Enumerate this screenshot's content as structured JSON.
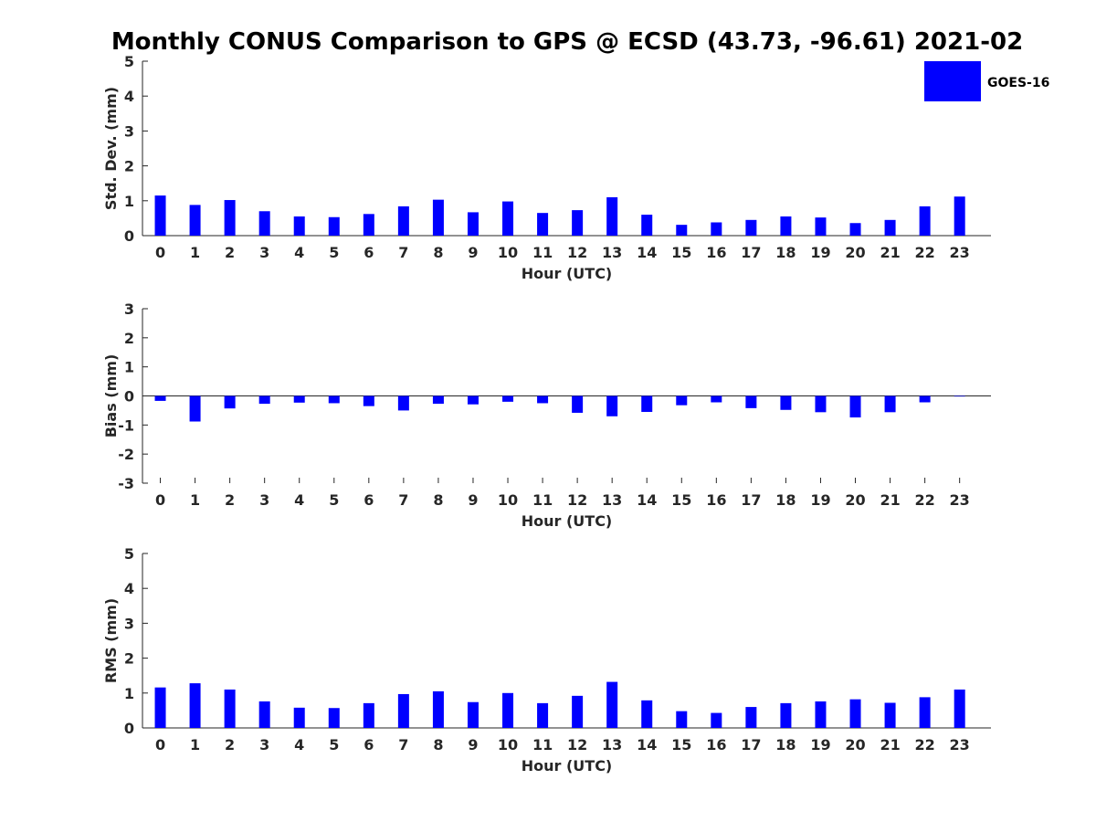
{
  "figure": {
    "title": "Monthly CONUS Comparison to GPS @ ECSD (43.73, -96.61) 2021-02",
    "legend_label": "GOES-16",
    "bar_color": "#0000ff"
  },
  "chart_data": [
    {
      "type": "bar",
      "title": "Monthly CONUS Comparison to GPS @ ECSD (43.73, -96.61) 2021-02",
      "xlabel": "Hour (UTC)",
      "ylabel": "Std. Dev. (mm)",
      "ylim": [
        0,
        5
      ],
      "yticks": [
        0,
        1,
        2,
        3,
        4,
        5
      ],
      "categories": [
        "0",
        "1",
        "2",
        "3",
        "4",
        "5",
        "6",
        "7",
        "8",
        "9",
        "10",
        "11",
        "12",
        "13",
        "14",
        "15",
        "16",
        "17",
        "18",
        "19",
        "20",
        "21",
        "22",
        "23"
      ],
      "series": [
        {
          "name": "GOES-16",
          "values": [
            1.15,
            0.88,
            1.02,
            0.7,
            0.55,
            0.53,
            0.62,
            0.84,
            1.03,
            0.67,
            0.98,
            0.65,
            0.73,
            1.1,
            0.6,
            0.31,
            0.38,
            0.45,
            0.55,
            0.52,
            0.36,
            0.45,
            0.84,
            1.12
          ]
        }
      ]
    },
    {
      "type": "bar",
      "xlabel": "Hour (UTC)",
      "ylabel": "Bias (mm)",
      "ylim": [
        -3,
        3
      ],
      "yticks": [
        -3,
        -2,
        -1,
        0,
        1,
        2,
        3
      ],
      "categories": [
        "0",
        "1",
        "2",
        "3",
        "4",
        "5",
        "6",
        "7",
        "8",
        "9",
        "10",
        "11",
        "12",
        "13",
        "14",
        "15",
        "16",
        "17",
        "18",
        "19",
        "20",
        "21",
        "22",
        "23"
      ],
      "series": [
        {
          "name": "GOES-16",
          "values": [
            -0.17,
            -0.88,
            -0.43,
            -0.27,
            -0.23,
            -0.25,
            -0.35,
            -0.5,
            -0.27,
            -0.29,
            -0.2,
            -0.25,
            -0.58,
            -0.7,
            -0.55,
            -0.32,
            -0.22,
            -0.42,
            -0.48,
            -0.56,
            -0.74,
            -0.56,
            -0.22,
            -0.02
          ]
        }
      ]
    },
    {
      "type": "bar",
      "xlabel": "Hour (UTC)",
      "ylabel": "RMS (mm)",
      "ylim": [
        0,
        5
      ],
      "yticks": [
        0,
        1,
        2,
        3,
        4,
        5
      ],
      "categories": [
        "0",
        "1",
        "2",
        "3",
        "4",
        "5",
        "6",
        "7",
        "8",
        "9",
        "10",
        "11",
        "12",
        "13",
        "14",
        "15",
        "16",
        "17",
        "18",
        "19",
        "20",
        "21",
        "22",
        "23"
      ],
      "series": [
        {
          "name": "GOES-16",
          "values": [
            1.16,
            1.28,
            1.1,
            0.76,
            0.58,
            0.57,
            0.71,
            0.97,
            1.05,
            0.74,
            1.0,
            0.71,
            0.92,
            1.32,
            0.79,
            0.48,
            0.43,
            0.6,
            0.71,
            0.76,
            0.82,
            0.72,
            0.88,
            1.1
          ]
        }
      ]
    }
  ]
}
